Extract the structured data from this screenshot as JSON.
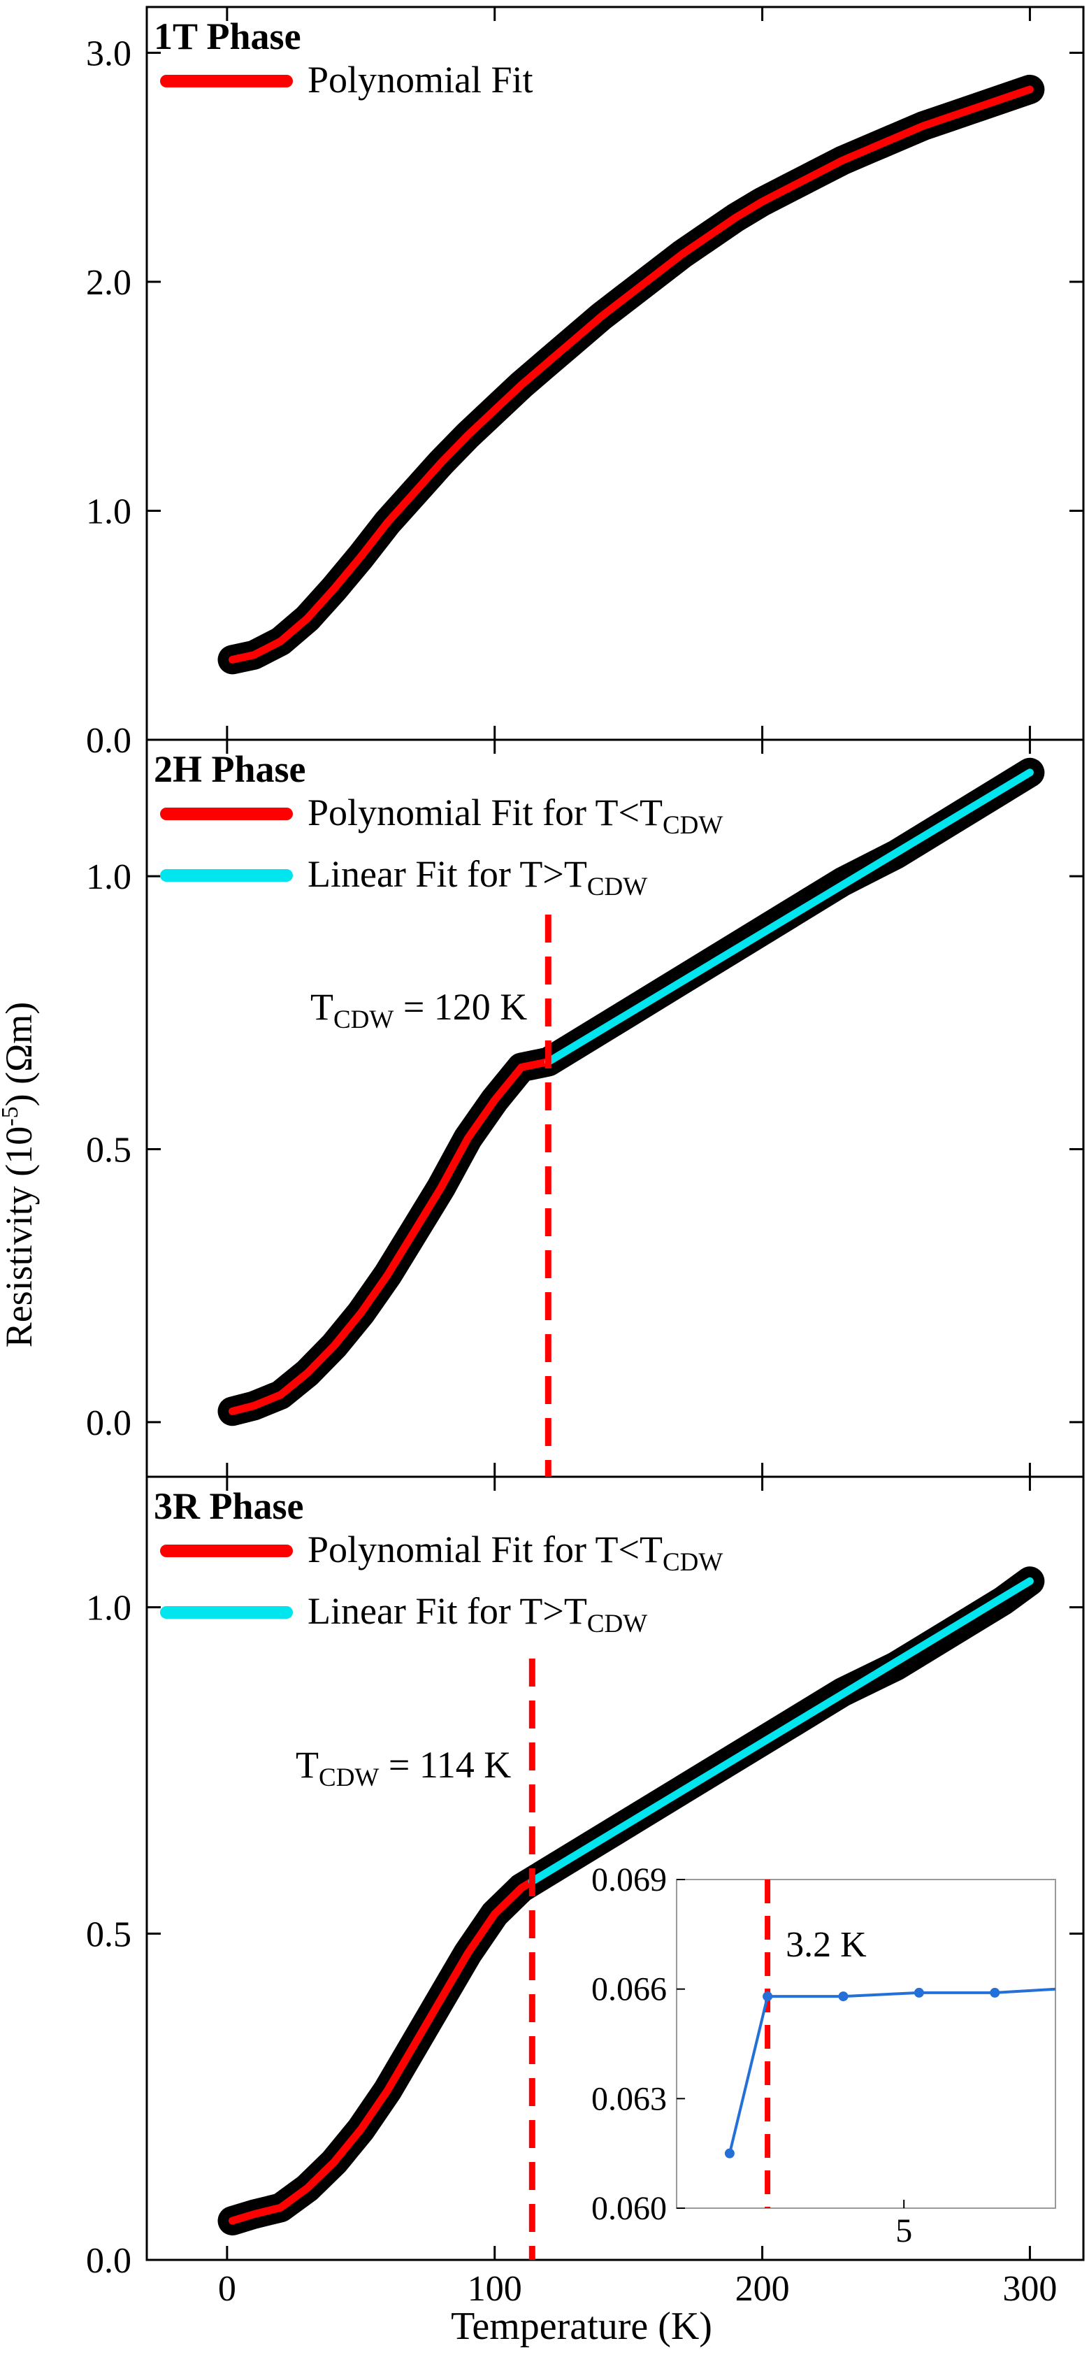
{
  "figure": {
    "ylabel_main": "Resistivity (10",
    "ylabel_sup": "-5",
    "ylabel_tail": ") (Ωm)",
    "xlabel": "Temperature (K)",
    "x_ticks": [
      "0",
      "100",
      "200",
      "300"
    ]
  },
  "chart_data": [
    {
      "type": "line",
      "title": "1T Phase",
      "xlabel": "Temperature (K)",
      "ylabel": "Resistivity (10-5) (Ωm)",
      "xlim": [
        -30,
        320
      ],
      "ylim": [
        0.0,
        3.2
      ],
      "y_ticks": [
        "0.0",
        "1.0",
        "2.0",
        "3.0"
      ],
      "y_tick_values": [
        0.0,
        1.0,
        2.0,
        3.0
      ],
      "legend": [
        {
          "label": "Polynomial Fit",
          "color": "#ff0000"
        }
      ],
      "series": [
        {
          "name": "data",
          "color": "#000000",
          "x": [
            2,
            10,
            20,
            30,
            40,
            50,
            60,
            70,
            80,
            90,
            100,
            110,
            120,
            130,
            140,
            150,
            160,
            170,
            180,
            190,
            200,
            210,
            220,
            230,
            240,
            250,
            260,
            270,
            280,
            290,
            300
          ],
          "y": [
            0.35,
            0.37,
            0.43,
            0.53,
            0.66,
            0.8,
            0.95,
            1.08,
            1.21,
            1.33,
            1.44,
            1.55,
            1.65,
            1.75,
            1.85,
            1.94,
            2.03,
            2.12,
            2.2,
            2.28,
            2.35,
            2.41,
            2.47,
            2.53,
            2.58,
            2.63,
            2.68,
            2.72,
            2.76,
            2.8,
            2.84
          ]
        },
        {
          "name": "Polynomial Fit",
          "color": "#ff0000",
          "x": [
            2,
            10,
            20,
            30,
            40,
            50,
            60,
            70,
            80,
            90,
            100,
            110,
            120,
            130,
            140,
            150,
            160,
            170,
            180,
            190,
            200,
            210,
            220,
            230,
            240,
            250,
            260,
            270,
            280,
            290,
            300
          ],
          "y": [
            0.35,
            0.37,
            0.43,
            0.53,
            0.66,
            0.8,
            0.95,
            1.08,
            1.21,
            1.33,
            1.44,
            1.55,
            1.65,
            1.75,
            1.85,
            1.94,
            2.03,
            2.12,
            2.2,
            2.28,
            2.35,
            2.41,
            2.47,
            2.53,
            2.58,
            2.63,
            2.68,
            2.72,
            2.76,
            2.8,
            2.84
          ]
        }
      ]
    },
    {
      "type": "line",
      "title": "2H Phase",
      "xlabel": "Temperature (K)",
      "ylabel": "Resistivity (10-5) (Ωm)",
      "xlim": [
        -30,
        320
      ],
      "ylim": [
        -0.1,
        1.25
      ],
      "y_ticks": [
        "0.0",
        "0.5",
        "1.0"
      ],
      "y_tick_values": [
        0.0,
        0.5,
        1.0
      ],
      "legend": [
        {
          "label": "Polynomial Fit for T<T",
          "sub": "CDW",
          "color": "#ff0000"
        },
        {
          "label": "Linear Fit for T>T",
          "sub": "CDW",
          "color": "#00e5ee"
        }
      ],
      "annotation": {
        "label": "T",
        "sub": "CDW",
        "tail": " = 120 K",
        "x": 120
      },
      "series": [
        {
          "name": "data",
          "color": "#000000",
          "x": [
            2,
            10,
            20,
            30,
            40,
            50,
            60,
            70,
            80,
            90,
            100,
            110,
            120,
            130,
            150,
            170,
            190,
            210,
            230,
            250,
            270,
            290,
            300
          ],
          "y": [
            0.02,
            0.03,
            0.05,
            0.09,
            0.14,
            0.2,
            0.27,
            0.35,
            0.43,
            0.52,
            0.59,
            0.65,
            0.66,
            0.69,
            0.75,
            0.81,
            0.87,
            0.93,
            0.99,
            1.04,
            1.1,
            1.16,
            1.19
          ]
        },
        {
          "name": "Polynomial Fit for T<TCDW",
          "color": "#ff0000",
          "x": [
            2,
            10,
            20,
            30,
            40,
            50,
            60,
            70,
            80,
            90,
            100,
            110,
            120
          ],
          "y": [
            0.02,
            0.03,
            0.05,
            0.09,
            0.14,
            0.2,
            0.27,
            0.35,
            0.43,
            0.52,
            0.59,
            0.65,
            0.66
          ]
        },
        {
          "name": "Linear Fit for T>TCDW",
          "color": "#00e5ee",
          "x": [
            120,
            300
          ],
          "y": [
            0.66,
            1.19
          ]
        }
      ]
    },
    {
      "type": "line",
      "title": "3R Phase",
      "xlabel": "Temperature (K)",
      "ylabel": "Resistivity (10-5) (Ωm)",
      "xlim": [
        -30,
        320
      ],
      "ylim": [
        0.0,
        1.2
      ],
      "y_ticks": [
        "0.0",
        "0.5",
        "1.0"
      ],
      "y_tick_values": [
        0.0,
        0.5,
        1.0
      ],
      "legend": [
        {
          "label": "Polynomial Fit for T<T",
          "sub": "CDW",
          "color": "#ff0000"
        },
        {
          "label": "Linear Fit for T>T",
          "sub": "CDW",
          "color": "#00e5ee"
        }
      ],
      "annotation": {
        "label": "T",
        "sub": "CDW",
        "tail": " = 114 K",
        "x": 114
      },
      "series": [
        {
          "name": "data",
          "color": "#000000",
          "x": [
            2,
            10,
            20,
            30,
            40,
            50,
            60,
            70,
            80,
            90,
            100,
            110,
            114,
            130,
            150,
            170,
            190,
            210,
            230,
            250,
            270,
            290,
            300
          ],
          "y": [
            0.06,
            0.07,
            0.08,
            0.11,
            0.15,
            0.2,
            0.26,
            0.33,
            0.4,
            0.47,
            0.53,
            0.57,
            0.58,
            0.62,
            0.67,
            0.72,
            0.77,
            0.82,
            0.87,
            0.91,
            0.96,
            1.01,
            1.04
          ]
        },
        {
          "name": "Polynomial Fit for T<TCDW",
          "color": "#ff0000",
          "x": [
            2,
            10,
            20,
            30,
            40,
            50,
            60,
            70,
            80,
            90,
            100,
            110,
            114
          ],
          "y": [
            0.06,
            0.07,
            0.08,
            0.11,
            0.15,
            0.2,
            0.26,
            0.33,
            0.4,
            0.47,
            0.53,
            0.57,
            0.58
          ]
        },
        {
          "name": "Linear Fit for T>TCDW",
          "color": "#00e5ee",
          "x": [
            114,
            300
          ],
          "y": [
            0.58,
            1.04
          ]
        }
      ],
      "inset": {
        "type": "line",
        "xlim": [
          2.0,
          7.0
        ],
        "ylim": [
          0.06,
          0.069
        ],
        "x_ticks": [
          "5"
        ],
        "x_tick_values": [
          5
        ],
        "y_ticks": [
          "0.060",
          "0.063",
          "0.066",
          "0.069"
        ],
        "y_tick_values": [
          0.06,
          0.063,
          0.066,
          0.069
        ],
        "annotation": "3.2 K",
        "annotation_x": 3.2,
        "color": "#2470d8",
        "x": [
          2.7,
          3.2,
          4.2,
          5.2,
          6.2,
          7.0
        ],
        "y": [
          0.0615,
          0.0658,
          0.0658,
          0.0659,
          0.0659,
          0.066
        ]
      }
    }
  ]
}
